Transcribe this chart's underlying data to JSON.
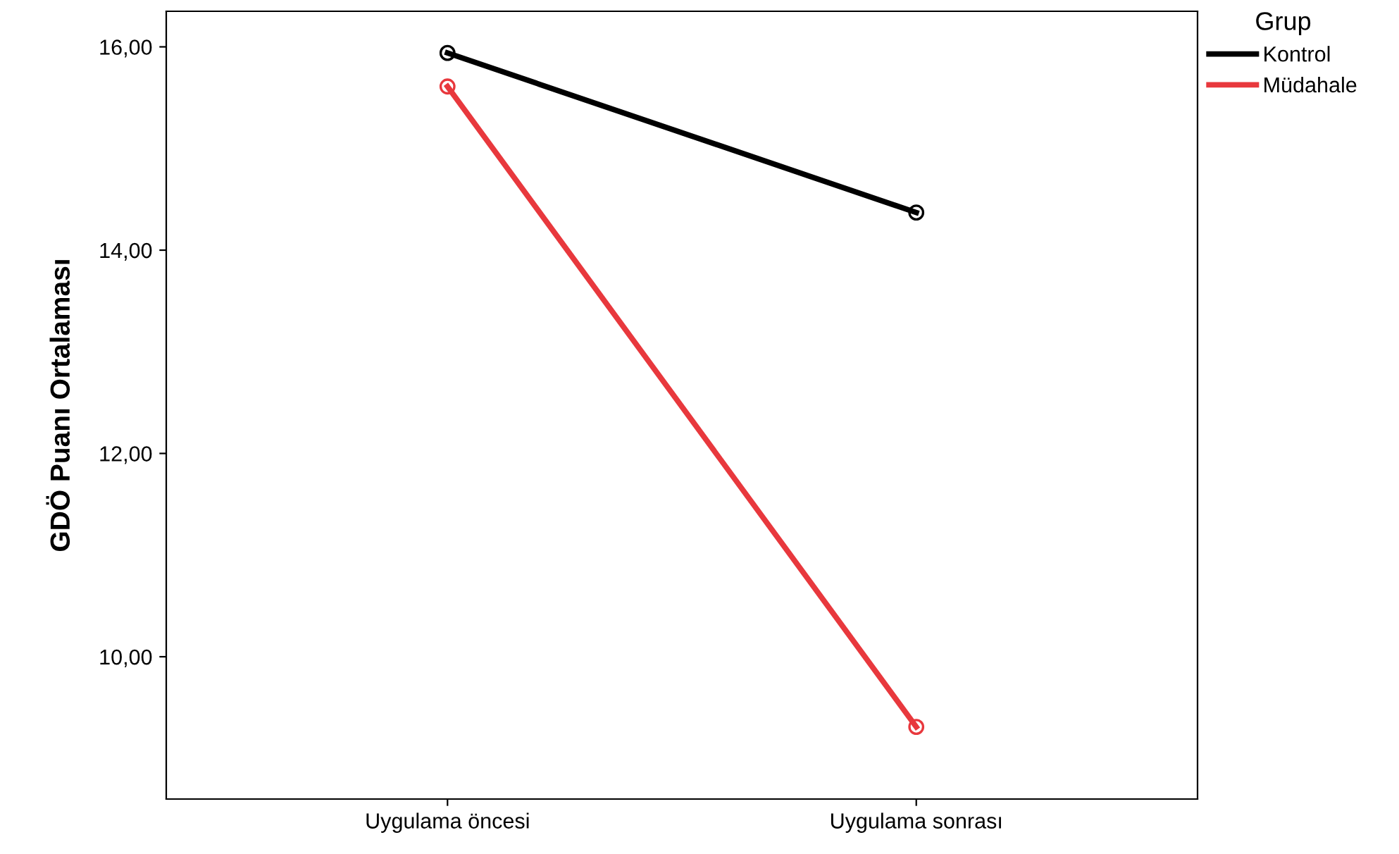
{
  "chart_data": {
    "type": "line",
    "ylabel": "GDÖ Puanı Ortalaması",
    "legend_title": "Grup",
    "categories": [
      "Uygulama öncesi",
      "Uygulama sonrası"
    ],
    "series": [
      {
        "name": "Kontrol",
        "color": "#000000",
        "values": [
          15.94,
          14.37
        ]
      },
      {
        "name": "Müdahale",
        "color": "#e8383d",
        "values": [
          15.61,
          9.31
        ]
      }
    ],
    "ylim": [
      8.6,
      16.35
    ],
    "yticks": [
      {
        "value": 10,
        "label": "10,00"
      },
      {
        "value": 12,
        "label": "12,00"
      },
      {
        "value": 14,
        "label": "14,00"
      },
      {
        "value": 16,
        "label": "16,00"
      }
    ],
    "marker": "circle",
    "line_style": "solid",
    "legend": "top right",
    "grid": false
  }
}
